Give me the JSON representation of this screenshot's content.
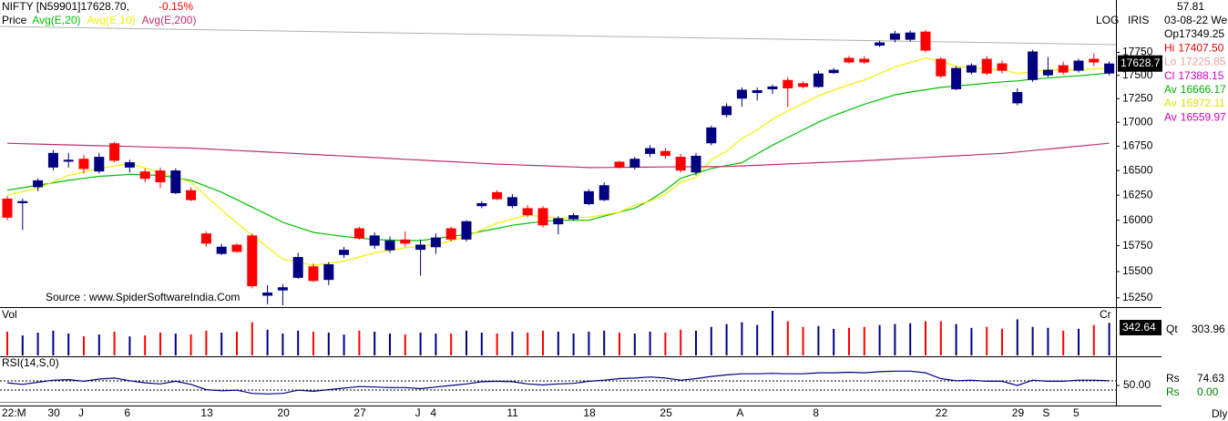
{
  "header": {
    "title": "NIFTY [N59901]17628.70,",
    "change": "-0.15%",
    "price_label": "Price",
    "scale_label": "LOG",
    "app_label": "IRIS",
    "period": "Dly"
  },
  "info": {
    "value": "57.81",
    "date": "03-08-22 We",
    "rows": [
      {
        "label": "Op",
        "value": "17349.25"
      },
      {
        "label": "Hi",
        "value": "17407.50"
      },
      {
        "label": "Lo",
        "value": "17225.85"
      },
      {
        "label": "Cl",
        "value": "17388.15"
      },
      {
        "label": "Av",
        "value": "16666.17"
      },
      {
        "label": "Av",
        "value": "16972.11"
      },
      {
        "label": "Av",
        "value": "16559.97"
      }
    ]
  },
  "chart_data": [
    {
      "type": "candlestick",
      "log_scale": true,
      "grid": false,
      "annotation": "Source : www.SpiderSoftwareIndia.Com",
      "last_price": "17628.7",
      "up_color": "#000080",
      "down_color": "#ff0000",
      "categories": [
        "22:M",
        null,
        null,
        "30",
        null,
        "J",
        null,
        null,
        "6",
        null,
        null,
        null,
        null,
        "13",
        null,
        null,
        null,
        null,
        "20",
        null,
        null,
        null,
        null,
        "27",
        null,
        null,
        null,
        "J",
        "4",
        null,
        null,
        null,
        null,
        "11",
        null,
        null,
        null,
        null,
        "18",
        null,
        null,
        null,
        null,
        "25",
        null,
        null,
        null,
        null,
        "A",
        null,
        null,
        null,
        null,
        "8",
        null,
        null,
        null,
        null,
        null,
        null,
        null,
        "22",
        null,
        null,
        null,
        null,
        "29",
        null,
        "S",
        null,
        "5",
        null,
        null
      ],
      "open": [
        16215,
        16170,
        16330,
        16530,
        16590,
        16620,
        16490,
        16780,
        16530,
        16490,
        16500,
        16270,
        16300,
        15870,
        15670,
        15760,
        15850,
        15270,
        15320,
        15440,
        15550,
        15420,
        15660,
        15920,
        15750,
        15705,
        15810,
        15710,
        15735,
        15920,
        15810,
        16140,
        16280,
        16140,
        16120,
        16120,
        15960,
        16010,
        16160,
        16200,
        16590,
        16530,
        16670,
        16700,
        16640,
        16480,
        16780,
        17075,
        17250,
        17310,
        17350,
        17450,
        17415,
        17375,
        17525,
        17690,
        17680,
        17825,
        17890,
        17890,
        17980,
        17680,
        17350,
        17530,
        17680,
        17630,
        17200,
        17450,
        17500,
        17610,
        17550,
        17680,
        17520
      ],
      "high": [
        16240,
        16215,
        16420,
        16710,
        16680,
        16660,
        16680,
        16795,
        16610,
        16520,
        16530,
        16520,
        16330,
        15890,
        15770,
        15770,
        15870,
        15370,
        15380,
        15680,
        15575,
        15590,
        15740,
        15935,
        15880,
        15840,
        15890,
        15810,
        15870,
        15935,
        16000,
        16190,
        16300,
        16260,
        16150,
        16140,
        16040,
        16070,
        16310,
        16380,
        16600,
        16640,
        16760,
        16730,
        16670,
        16680,
        16965,
        17200,
        17370,
        17370,
        17400,
        17480,
        17435,
        17550,
        17580,
        17710,
        17710,
        17880,
        17990,
        17990,
        18000,
        17700,
        17600,
        17630,
        17710,
        17660,
        17360,
        17780,
        17700,
        17650,
        17680,
        17740,
        17650
      ],
      "low": [
        16000,
        15905,
        16290,
        16500,
        16530,
        16470,
        16470,
        16585,
        16480,
        16380,
        16320,
        16260,
        16190,
        15740,
        15660,
        15680,
        15340,
        15190,
        15180,
        15430,
        15400,
        15370,
        15630,
        15810,
        15720,
        15680,
        15740,
        15460,
        15670,
        15790,
        15790,
        16120,
        16200,
        16120,
        16030,
        15930,
        15860,
        16000,
        16150,
        16190,
        16520,
        16510,
        16640,
        16620,
        16480,
        16450,
        16760,
        17050,
        17165,
        17230,
        17300,
        17160,
        17360,
        17365,
        17515,
        17630,
        17625,
        17810,
        17860,
        17870,
        17750,
        17470,
        17340,
        17510,
        17500,
        17520,
        17180,
        17430,
        17480,
        17510,
        17530,
        17600,
        17500
      ],
      "close": [
        16025,
        16190,
        16400,
        16680,
        16610,
        16515,
        16640,
        16600,
        16585,
        16415,
        16380,
        16500,
        16200,
        15770,
        15740,
        15690,
        15360,
        15300,
        15350,
        15640,
        15410,
        15570,
        15710,
        15820,
        15850,
        15800,
        15770,
        15760,
        15830,
        15810,
        15990,
        16170,
        16210,
        16230,
        16050,
        15950,
        16020,
        16050,
        16290,
        16350,
        16530,
        16620,
        16730,
        16650,
        16500,
        16650,
        16945,
        17170,
        17345,
        17340,
        17380,
        17360,
        17375,
        17520,
        17560,
        17640,
        17640,
        17860,
        17960,
        17970,
        17770,
        17490,
        17580,
        17610,
        17520,
        17550,
        17320,
        17760,
        17560,
        17530,
        17660,
        17640,
        17628.7
      ],
      "series": [
        {
          "name": "Avg(E,20)",
          "color": "#00c000",
          "values": [
            16300,
            16325,
            16350,
            16375,
            16400,
            16420,
            16440,
            16450,
            16460,
            16455,
            16450,
            16425,
            16400,
            16340,
            16280,
            16205,
            16130,
            16055,
            15980,
            15930,
            15880,
            15860,
            15840,
            15825,
            15810,
            15805,
            15800,
            15800,
            15820,
            15840,
            15860,
            15890,
            15920,
            15950,
            15970,
            15990,
            16000,
            16000,
            16000,
            16040,
            16080,
            16120,
            16200,
            16300,
            16420,
            16470,
            16520,
            16550,
            16580,
            16670,
            16760,
            16840,
            16920,
            17000,
            17070,
            17130,
            17190,
            17240,
            17290,
            17320,
            17345,
            17370,
            17385,
            17400,
            17415,
            17430,
            17440,
            17460,
            17470,
            17485,
            17495,
            17510,
            17525
          ]
        },
        {
          "name": "Avg(E,10)",
          "color": "#f0f000",
          "values": [
            16250,
            16285,
            16320,
            16385,
            16450,
            16485,
            16520,
            16545,
            16570,
            16525,
            16480,
            16430,
            16380,
            16240,
            16100,
            15975,
            15850,
            15735,
            15620,
            15590,
            15560,
            15580,
            15600,
            15640,
            15680,
            15705,
            15730,
            15745,
            15760,
            15800,
            15840,
            15905,
            15970,
            16010,
            16050,
            16035,
            16020,
            16025,
            16030,
            16055,
            16080,
            16150,
            16190,
            16260,
            16380,
            16430,
            16610,
            16700,
            16830,
            16920,
            17030,
            17120,
            17200,
            17280,
            17340,
            17400,
            17450,
            17520,
            17590,
            17640,
            17690,
            17650,
            17600,
            17580,
            17570,
            17560,
            17520,
            17540,
            17560,
            17560,
            17560,
            17570,
            17580
          ]
        },
        {
          "name": "Avg(E,200)",
          "color": "#c03070",
          "values": [
            16780,
            16776,
            16772,
            16767,
            16763,
            16759,
            16755,
            16751,
            16747,
            16742,
            16738,
            16734,
            16730,
            16722,
            16714,
            16705,
            16697,
            16689,
            16681,
            16673,
            16664,
            16656,
            16648,
            16640,
            16632,
            16623,
            16615,
            16607,
            16598,
            16590,
            16582,
            16573,
            16565,
            16559,
            16553,
            16548,
            16542,
            16536,
            16530,
            16531,
            16532,
            16533,
            16534,
            16536,
            16537,
            16538,
            16539,
            16540,
            16547,
            16553,
            16560,
            16567,
            16573,
            16580,
            16587,
            16593,
            16600,
            16608,
            16617,
            16625,
            16633,
            16642,
            16650,
            16658,
            16667,
            16675,
            16690,
            16705,
            16720,
            16735,
            16750,
            16765,
            16780
          ]
        }
      ],
      "ylim": [
        15180,
        18150
      ],
      "yticks": [
        15250,
        15500,
        15750,
        16000,
        16250,
        16500,
        16750,
        17000,
        17250,
        17500,
        17750
      ]
    },
    {
      "type": "bar",
      "title": "Vol",
      "corner_label": "Cr",
      "qty_label": "Qt",
      "qty_value": "303.96",
      "values": [
        250,
        210,
        240,
        260,
        230,
        200,
        220,
        250,
        200,
        210,
        240,
        230,
        220,
        260,
        240,
        250,
        350,
        270,
        230,
        260,
        250,
        240,
        220,
        260,
        250,
        230,
        220,
        240,
        230,
        230,
        260,
        240,
        230,
        250,
        240,
        260,
        250,
        230,
        250,
        260,
        240,
        230,
        250,
        240,
        270,
        260,
        300,
        330,
        350,
        320,
        470,
        360,
        300,
        310,
        280,
        290,
        300,
        320,
        330,
        340,
        360,
        360,
        330,
        290,
        300,
        280,
        380,
        300,
        290,
        260,
        280,
        320,
        342.64
      ],
      "ylim": [
        0,
        480
      ]
    },
    {
      "type": "line",
      "title": "RSI(14,S,0)",
      "color": "#000080",
      "values": [
        55,
        52,
        56,
        60,
        61,
        58,
        62,
        64,
        59,
        55,
        53,
        58,
        52,
        42,
        40,
        41,
        35,
        34,
        35,
        41,
        39,
        42,
        45,
        48,
        47,
        46,
        46,
        44,
        47,
        50,
        53,
        57,
        58,
        57,
        53,
        51,
        53,
        54,
        58,
        60,
        63,
        64,
        66,
        64,
        60,
        63,
        67,
        70,
        72,
        72,
        73,
        72,
        72,
        74,
        74,
        75,
        74,
        76,
        77,
        77,
        74,
        63,
        59,
        60,
        58,
        58,
        50,
        60,
        58,
        58,
        60,
        60,
        59
      ],
      "ylim": [
        0,
        100
      ],
      "yticks": [
        {
          "value": 50,
          "label": "50.00"
        }
      ],
      "readouts": [
        {
          "label": "Rs",
          "value": "74.63",
          "color": "#000000"
        },
        {
          "label": "Rs",
          "value": "0.00",
          "color": "#008000"
        }
      ]
    }
  ]
}
